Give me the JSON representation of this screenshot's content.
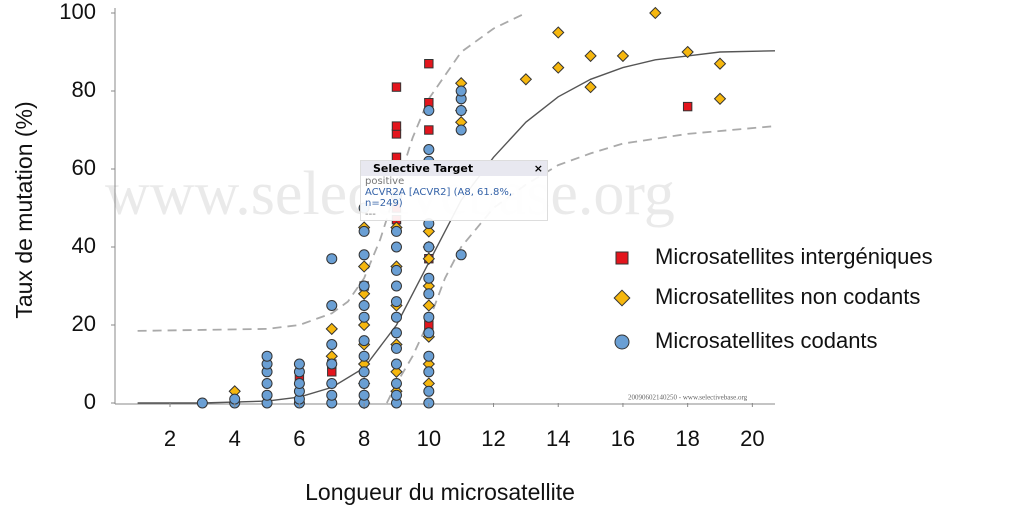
{
  "chart_data": {
    "type": "scatter",
    "xlabel": "Longueur du microsatellite",
    "ylabel": "Taux de mutation (%)",
    "xlim": [
      0.3,
      20.7
    ],
    "ylim": [
      0,
      100
    ],
    "xticks": [
      2,
      4,
      6,
      8,
      10,
      12,
      14,
      16,
      18,
      20
    ],
    "yticks": [
      0,
      20,
      40,
      60,
      80,
      100
    ],
    "watermark": "www.selectivebase.org",
    "footer": "20090602140250 - www.selectivebase.org",
    "tooltip": {
      "title": "Selective Target",
      "close": "×",
      "status": "positive",
      "target": "ACVR2A [ACVR2] (A8, 61.8%, n=249)",
      "extra": "---"
    },
    "series": [
      {
        "name": "Microsatellites intergéniques",
        "color": "#e3151d",
        "marker": "square",
        "x": [
          6,
          7,
          7,
          8,
          9,
          9,
          9,
          9,
          9,
          9,
          9,
          10,
          10,
          10,
          10,
          10,
          18
        ],
        "values": [
          6,
          8,
          10,
          30,
          47,
          50,
          60,
          63,
          69,
          71,
          81,
          20,
          37,
          70,
          77,
          87,
          76
        ]
      },
      {
        "name": "Microsatellites non codants",
        "color": "#f6b70e",
        "marker": "diamond",
        "x": [
          4,
          7,
          7,
          8,
          8,
          8,
          8,
          8,
          8,
          8,
          8,
          9,
          9,
          9,
          9,
          9,
          9,
          10,
          10,
          10,
          10,
          10,
          10,
          10,
          10,
          11,
          11,
          11,
          13,
          14,
          14,
          15,
          15,
          16,
          17,
          18,
          19,
          19
        ],
        "values": [
          3,
          12,
          19,
          0,
          5,
          10,
          15,
          20,
          28,
          35,
          45,
          3,
          8,
          15,
          25,
          35,
          45,
          5,
          10,
          17,
          25,
          30,
          37,
          40,
          44,
          72,
          75,
          82,
          83,
          86,
          95,
          81,
          89,
          89,
          100,
          90,
          78,
          87
        ]
      },
      {
        "name": "Microsatellites codants",
        "color": "#6a9fd4",
        "marker": "circle",
        "x": [
          3,
          4,
          4,
          5,
          5,
          5,
          5,
          5,
          5,
          6,
          6,
          6,
          6,
          6,
          6,
          7,
          7,
          7,
          7,
          7,
          7,
          7,
          8,
          8,
          8,
          8,
          8,
          8,
          8,
          8,
          8,
          8,
          8,
          8,
          9,
          9,
          9,
          9,
          9,
          9,
          9,
          9,
          9,
          9,
          9,
          9,
          9,
          10,
          10,
          10,
          10,
          10,
          10,
          10,
          10,
          10,
          10,
          10,
          10,
          10,
          11,
          11,
          11,
          11,
          11
        ],
        "values": [
          0,
          0,
          1,
          0,
          2,
          5,
          8,
          10,
          12,
          0,
          1,
          3,
          5,
          8,
          10,
          0,
          2,
          5,
          10,
          15,
          25,
          37,
          0,
          2,
          5,
          8,
          12,
          16,
          22,
          25,
          30,
          38,
          44,
          50,
          0,
          2,
          5,
          10,
          14,
          18,
          22,
          26,
          30,
          34,
          40,
          44,
          53,
          0,
          3,
          8,
          12,
          18,
          22,
          28,
          32,
          40,
          46,
          62,
          65,
          75,
          38,
          70,
          75,
          78,
          80
        ]
      }
    ],
    "curves": [
      {
        "style": "solid",
        "color": "#555",
        "x": [
          1,
          3,
          5,
          6,
          7,
          8,
          9,
          10,
          11,
          12,
          13,
          14,
          15,
          16,
          17,
          18,
          19,
          20.7
        ],
        "values": [
          0,
          0,
          0.5,
          1.5,
          4,
          9,
          20,
          36,
          52,
          63,
          72,
          78.5,
          83,
          86,
          88,
          89,
          90,
          90.3
        ]
      },
      {
        "style": "dashed",
        "color": "#aaa",
        "x": [
          1,
          5,
          6,
          7,
          7.5,
          8,
          8.5,
          9,
          9.5,
          10,
          11,
          12,
          13
        ],
        "values": [
          18.5,
          19,
          20,
          23,
          26,
          32,
          42,
          55,
          68,
          78,
          90,
          96,
          100
        ]
      },
      {
        "style": "dashed",
        "color": "#aaa",
        "x": [
          8.7,
          9,
          9.5,
          10,
          10.5,
          11,
          12,
          13,
          14,
          15,
          16,
          18,
          20.7
        ],
        "values": [
          0,
          5,
          12,
          21,
          32,
          40,
          50,
          56,
          61,
          64,
          66.5,
          69,
          71
        ]
      }
    ]
  }
}
